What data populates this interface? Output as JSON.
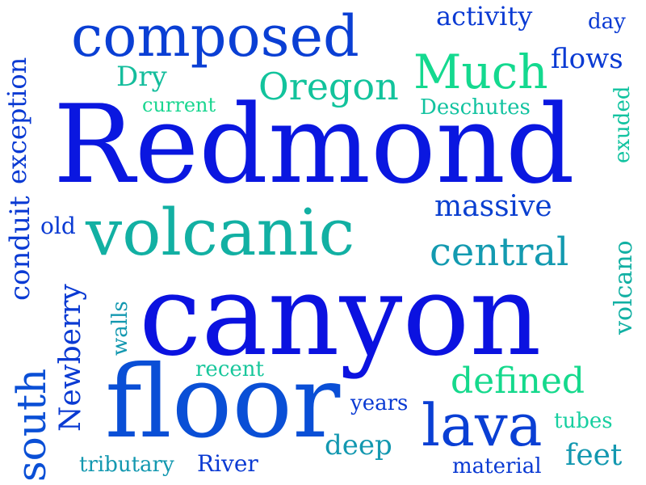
{
  "words": [
    {
      "text": "Redmond",
      "color": "#0a17e0"
    },
    {
      "text": "canyon",
      "color": "#0b12e0"
    },
    {
      "text": "floor",
      "color": "#0a4fd6"
    },
    {
      "text": "volcanic",
      "color": "#12b0a3"
    },
    {
      "text": "composed",
      "color": "#0a3fd4"
    },
    {
      "text": "Oregon",
      "color": "#12c39c"
    },
    {
      "text": "Much",
      "color": "#14d98f"
    },
    {
      "text": "lava",
      "color": "#0a3fd4"
    },
    {
      "text": "central",
      "color": "#139ab0"
    },
    {
      "text": "massive",
      "color": "#0a3fd0"
    },
    {
      "text": "defined",
      "color": "#15d98c"
    },
    {
      "text": "deep",
      "color": "#1398b0"
    },
    {
      "text": "activity",
      "color": "#0a3ad3"
    },
    {
      "text": "flows",
      "color": "#0a3ad3"
    },
    {
      "text": "day",
      "color": "#0a3ad3"
    },
    {
      "text": "Dry",
      "color": "#14bd9c"
    },
    {
      "text": "current",
      "color": "#19d690"
    },
    {
      "text": "Deschutes",
      "color": "#12c3a0"
    },
    {
      "text": "old",
      "color": "#0a3ad3"
    },
    {
      "text": "recent",
      "color": "#19c79c"
    },
    {
      "text": "years",
      "color": "#0a3ad3"
    },
    {
      "text": "tubes",
      "color": "#17cfa0"
    },
    {
      "text": "feet",
      "color": "#1398b0"
    },
    {
      "text": "tributary",
      "color": "#1398b0"
    },
    {
      "text": "River",
      "color": "#0a3ad3"
    },
    {
      "text": "material",
      "color": "#0a3ad3"
    },
    {
      "text": "exception",
      "color": "#0a3ad3"
    },
    {
      "text": "conduit",
      "color": "#0a3ad3"
    },
    {
      "text": "south",
      "color": "#0a4fd6"
    },
    {
      "text": "Newberry",
      "color": "#0a3ad3"
    },
    {
      "text": "walls",
      "color": "#1398b0"
    },
    {
      "text": "exuded",
      "color": "#12c3a0"
    },
    {
      "text": "volcano",
      "color": "#12b0a3"
    }
  ]
}
